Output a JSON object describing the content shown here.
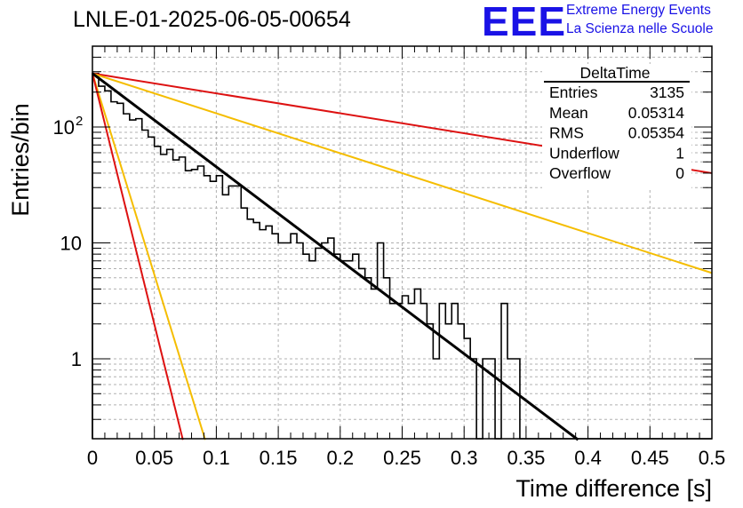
{
  "title": "LNLE-01-2025-06-05-00654",
  "logo": {
    "text": "EEE",
    "line1": "Extreme Energy Events",
    "line2": "La Scienza nelle Scuole",
    "color": "#1a12e6"
  },
  "stats": {
    "name": "DeltaTime",
    "rows": [
      {
        "label": "Entries",
        "value": "3135"
      },
      {
        "label": "Mean",
        "value": "0.05314"
      },
      {
        "label": "RMS",
        "value": "0.05354"
      },
      {
        "label": "Underflow",
        "value": "1"
      },
      {
        "label": "Overflow",
        "value": "0"
      }
    ]
  },
  "chart_data": {
    "type": "histogram",
    "title": "LNLE-01-2025-06-05-00654",
    "xlabel": "Time difference [s]",
    "ylabel": "Entries/bin",
    "xlim": [
      0,
      0.5
    ],
    "ylim": [
      0.2,
      550
    ],
    "log_y": true,
    "grid": true,
    "x_ticks": [
      "0",
      "0.05",
      "0.1",
      "0.15",
      "0.2",
      "0.25",
      "0.3",
      "0.35",
      "0.4",
      "0.45",
      "0.5"
    ],
    "y_ticks": [
      {
        "value": 1,
        "label": "1"
      },
      {
        "value": 10,
        "label": "10"
      },
      {
        "value": 100,
        "label": "10",
        "exponent": "2"
      }
    ],
    "bin_width": 0.005,
    "histogram": {
      "color": "#000000",
      "values": [
        290,
        225,
        205,
        165,
        160,
        130,
        115,
        118,
        94,
        82,
        68,
        58,
        64,
        52,
        55,
        42,
        43,
        46,
        38,
        34,
        38,
        26,
        31,
        31,
        20,
        16,
        15,
        13,
        14,
        12,
        10,
        10,
        12,
        10,
        8,
        7,
        9,
        10,
        11,
        8,
        7,
        7,
        8,
        6,
        5,
        4,
        10,
        5,
        3,
        3,
        3.5,
        3,
        4,
        3,
        2,
        1,
        3,
        2,
        3,
        2,
        1.5,
        1,
        0,
        1,
        1,
        0,
        3,
        1,
        1,
        0,
        0,
        0,
        0,
        0,
        0,
        0,
        0,
        0,
        0,
        0,
        0,
        0,
        0,
        0,
        0,
        0,
        0,
        0,
        0,
        0,
        0,
        0,
        0,
        0,
        0,
        0,
        0,
        0,
        0,
        0
      ]
    },
    "fit": {
      "color": "#000000",
      "y0": 290,
      "y_end": 0.2,
      "x_end": 0.392
    },
    "curves": [
      {
        "color": "#dd1111",
        "x": [
          0,
          0.5
        ],
        "y": [
          290,
          40
        ]
      },
      {
        "color": "#f5bd00",
        "x": [
          0,
          0.5
        ],
        "y": [
          290,
          5.5
        ]
      },
      {
        "color": "#f5bd00",
        "x": [
          0,
          0.091
        ],
        "y": [
          290,
          0.2
        ]
      },
      {
        "color": "#dd1111",
        "x": [
          0,
          0.073
        ],
        "y": [
          290,
          0.2
        ]
      }
    ]
  }
}
